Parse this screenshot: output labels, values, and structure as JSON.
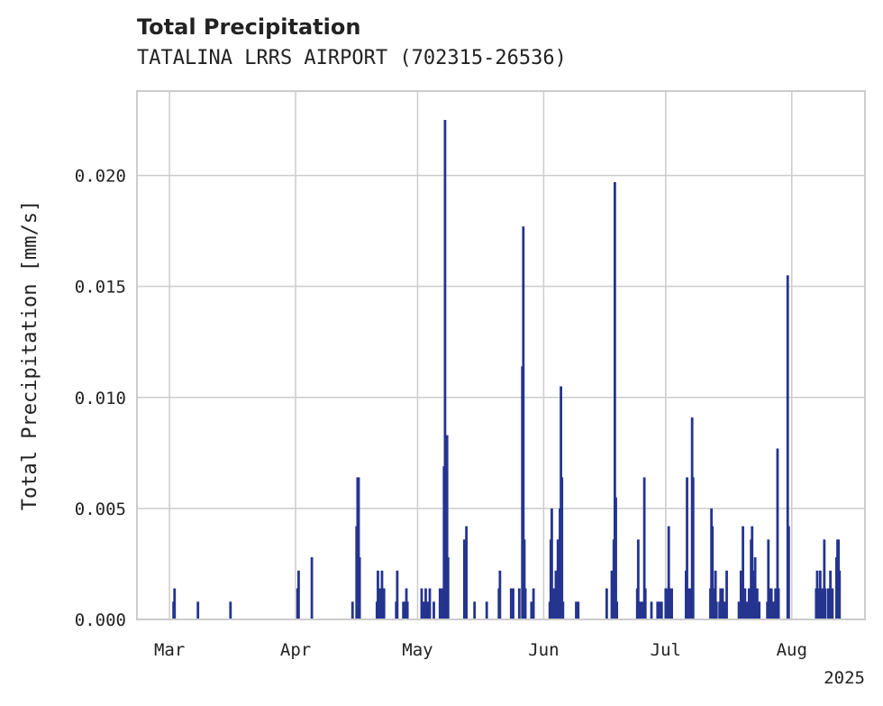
{
  "chart_data": {
    "type": "bar",
    "title": "Total Precipitation",
    "subtitle": "TATALINA LRRS AIRPORT (702315-26536)",
    "ylabel": "Total Precipitation [mm/s]",
    "xlabel": "",
    "year_label": "2025",
    "x_range": [
      "2025-02-21",
      "2025-08-19"
    ],
    "ylim": [
      0,
      0.0238
    ],
    "grid": true,
    "y_ticks": [
      {
        "value": 0.0,
        "label": "0.000"
      },
      {
        "value": 0.005,
        "label": "0.005"
      },
      {
        "value": 0.01,
        "label": "0.010"
      },
      {
        "value": 0.015,
        "label": "0.015"
      },
      {
        "value": 0.02,
        "label": "0.020"
      }
    ],
    "x_ticks": [
      {
        "date": "2025-03-01",
        "label": "Mar"
      },
      {
        "date": "2025-04-01",
        "label": "Apr"
      },
      {
        "date": "2025-05-01",
        "label": "May"
      },
      {
        "date": "2025-06-01",
        "label": "Jun"
      },
      {
        "date": "2025-07-01",
        "label": "Jul"
      },
      {
        "date": "2025-08-01",
        "label": "Aug"
      }
    ],
    "series": [
      {
        "color": "#24348f",
        "points": [
          [
            "2025-03-02T00:00",
            0.0008
          ],
          [
            "2025-03-02T06:00",
            0.0014
          ],
          [
            "2025-03-08T00:00",
            0.0008
          ],
          [
            "2025-03-16T00:00",
            0.0008
          ],
          [
            "2025-04-01T12:00",
            0.0014
          ],
          [
            "2025-04-01T18:00",
            0.0022
          ],
          [
            "2025-04-05T00:00",
            0.0028
          ],
          [
            "2025-04-15T00:00",
            0.0008
          ],
          [
            "2025-04-16T00:00",
            0.0042
          ],
          [
            "2025-04-16T06:00",
            0.0064
          ],
          [
            "2025-04-16T12:00",
            0.0064
          ],
          [
            "2025-04-16T18:00",
            0.0028
          ],
          [
            "2025-04-21T00:00",
            0.0008
          ],
          [
            "2025-04-21T06:00",
            0.0022
          ],
          [
            "2025-04-21T18:00",
            0.0014
          ],
          [
            "2025-04-22T06:00",
            0.0022
          ],
          [
            "2025-04-22T18:00",
            0.0014
          ],
          [
            "2025-04-25T18:00",
            0.0008
          ],
          [
            "2025-04-26T00:00",
            0.0022
          ],
          [
            "2025-04-27T12:00",
            0.0008
          ],
          [
            "2025-04-28T00:00",
            0.0008
          ],
          [
            "2025-04-28T06:00",
            0.0014
          ],
          [
            "2025-04-28T12:00",
            0.0008
          ],
          [
            "2025-05-02T00:00",
            0.0014
          ],
          [
            "2025-05-02T12:00",
            0.0008
          ],
          [
            "2025-05-03T00:00",
            0.0014
          ],
          [
            "2025-05-03T12:00",
            0.0008
          ],
          [
            "2025-05-04T00:00",
            0.0014
          ],
          [
            "2025-05-05T00:00",
            0.0008
          ],
          [
            "2025-05-06T12:00",
            0.0014
          ],
          [
            "2025-05-07T00:00",
            0.0014
          ],
          [
            "2025-05-07T12:00",
            0.0069
          ],
          [
            "2025-05-07T18:00",
            0.0225
          ],
          [
            "2025-05-08T00:00",
            0.0042
          ],
          [
            "2025-05-08T06:00",
            0.0083
          ],
          [
            "2025-05-08T12:00",
            0.0028
          ],
          [
            "2025-05-12T12:00",
            0.0036
          ],
          [
            "2025-05-12T18:00",
            0.0014
          ],
          [
            "2025-05-13T00:00",
            0.0042
          ],
          [
            "2025-05-15T00:00",
            0.0008
          ],
          [
            "2025-05-18T00:00",
            0.0008
          ],
          [
            "2025-05-21T00:00",
            0.0014
          ],
          [
            "2025-05-21T06:00",
            0.0022
          ],
          [
            "2025-05-24T00:00",
            0.0014
          ],
          [
            "2025-05-24T12:00",
            0.0014
          ],
          [
            "2025-05-26T00:00",
            0.0014
          ],
          [
            "2025-05-26T18:00",
            0.0114
          ],
          [
            "2025-05-27T00:00",
            0.0177
          ],
          [
            "2025-05-27T06:00",
            0.0036
          ],
          [
            "2025-05-27T12:00",
            0.0014
          ],
          [
            "2025-05-29T00:00",
            0.0008
          ],
          [
            "2025-05-29T12:00",
            0.0014
          ],
          [
            "2025-06-02T12:00",
            0.0008
          ],
          [
            "2025-06-02T18:00",
            0.0036
          ],
          [
            "2025-06-03T00:00",
            0.005
          ],
          [
            "2025-06-03T06:00",
            0.0008
          ],
          [
            "2025-06-03T12:00",
            0.0014
          ],
          [
            "2025-06-04T00:00",
            0.0022
          ],
          [
            "2025-06-04T12:00",
            0.0036
          ],
          [
            "2025-06-05T00:00",
            0.005
          ],
          [
            "2025-06-05T06:00",
            0.0105
          ],
          [
            "2025-06-05T12:00",
            0.0064
          ],
          [
            "2025-06-05T18:00",
            0.0008
          ],
          [
            "2025-06-09T00:00",
            0.0008
          ],
          [
            "2025-06-09T12:00",
            0.0008
          ],
          [
            "2025-06-16T12:00",
            0.0014
          ],
          [
            "2025-06-17T18:00",
            0.0022
          ],
          [
            "2025-06-18T06:00",
            0.0036
          ],
          [
            "2025-06-18T12:00",
            0.0197
          ],
          [
            "2025-06-18T18:00",
            0.0055
          ],
          [
            "2025-06-19T00:00",
            0.0008
          ],
          [
            "2025-06-24T00:00",
            0.0014
          ],
          [
            "2025-06-24T06:00",
            0.0036
          ],
          [
            "2025-06-24T12:00",
            0.0008
          ],
          [
            "2025-06-25T00:00",
            0.0008
          ],
          [
            "2025-06-25T12:00",
            0.0008
          ],
          [
            "2025-06-25T18:00",
            0.0064
          ],
          [
            "2025-06-26T00:00",
            0.0014
          ],
          [
            "2025-06-27T12:00",
            0.0008
          ],
          [
            "2025-06-29T00:00",
            0.0008
          ],
          [
            "2025-06-29T12:00",
            0.0008
          ],
          [
            "2025-06-30T00:00",
            0.0008
          ],
          [
            "2025-07-01T00:00",
            0.0014
          ],
          [
            "2025-07-01T12:00",
            0.0014
          ],
          [
            "2025-07-01T18:00",
            0.0042
          ],
          [
            "2025-07-02T00:00",
            0.0014
          ],
          [
            "2025-07-02T06:00",
            0.0014
          ],
          [
            "2025-07-02T12:00",
            0.0014
          ],
          [
            "2025-07-06T00:00",
            0.0022
          ],
          [
            "2025-07-06T06:00",
            0.0064
          ],
          [
            "2025-07-06T12:00",
            0.0014
          ],
          [
            "2025-07-07T00:00",
            0.0014
          ],
          [
            "2025-07-07T12:00",
            0.0091
          ],
          [
            "2025-07-07T18:00",
            0.0064
          ],
          [
            "2025-07-12T00:00",
            0.0014
          ],
          [
            "2025-07-12T06:00",
            0.005
          ],
          [
            "2025-07-12T12:00",
            0.0042
          ],
          [
            "2025-07-12T18:00",
            0.0014
          ],
          [
            "2025-07-13T06:00",
            0.0022
          ],
          [
            "2025-07-13T12:00",
            0.0008
          ],
          [
            "2025-07-14T06:00",
            0.0008
          ],
          [
            "2025-07-14T12:00",
            0.0014
          ],
          [
            "2025-07-15T00:00",
            0.0014
          ],
          [
            "2025-07-15T12:00",
            0.0008
          ],
          [
            "2025-07-16T00:00",
            0.0022
          ],
          [
            "2025-07-19T00:00",
            0.0008
          ],
          [
            "2025-07-19T12:00",
            0.0022
          ],
          [
            "2025-07-20T00:00",
            0.0042
          ],
          [
            "2025-07-20T12:00",
            0.0014
          ],
          [
            "2025-07-21T00:00",
            0.0008
          ],
          [
            "2025-07-21T12:00",
            0.0014
          ],
          [
            "2025-07-22T00:00",
            0.0036
          ],
          [
            "2025-07-22T06:00",
            0.0042
          ],
          [
            "2025-07-22T12:00",
            0.0022
          ],
          [
            "2025-07-23T00:00",
            0.0028
          ],
          [
            "2025-07-23T12:00",
            0.0014
          ],
          [
            "2025-07-24T00:00",
            0.0008
          ],
          [
            "2025-07-26T00:00",
            0.0008
          ],
          [
            "2025-07-26T06:00",
            0.0036
          ],
          [
            "2025-07-26T12:00",
            0.0014
          ],
          [
            "2025-07-27T00:00",
            0.0014
          ],
          [
            "2025-07-27T12:00",
            0.0008
          ],
          [
            "2025-07-28T00:00",
            0.0014
          ],
          [
            "2025-07-28T06:00",
            0.0014
          ],
          [
            "2025-07-28T12:00",
            0.0077
          ],
          [
            "2025-07-28T18:00",
            0.0014
          ],
          [
            "2025-07-31T00:00",
            0.0155
          ],
          [
            "2025-07-31T06:00",
            0.0042
          ],
          [
            "2025-08-07T00:00",
            0.0014
          ],
          [
            "2025-08-07T06:00",
            0.0022
          ],
          [
            "2025-08-07T12:00",
            0.0014
          ],
          [
            "2025-08-08T00:00",
            0.0022
          ],
          [
            "2025-08-08T12:00",
            0.0014
          ],
          [
            "2025-08-09T00:00",
            0.0036
          ],
          [
            "2025-08-09T06:00",
            0.0014
          ],
          [
            "2025-08-10T00:00",
            0.0014
          ],
          [
            "2025-08-10T12:00",
            0.0022
          ],
          [
            "2025-08-11T00:00",
            0.0014
          ],
          [
            "2025-08-12T00:00",
            0.0028
          ],
          [
            "2025-08-12T06:00",
            0.0036
          ],
          [
            "2025-08-12T12:00",
            0.0036
          ],
          [
            "2025-08-12T18:00",
            0.0022
          ]
        ]
      }
    ]
  }
}
